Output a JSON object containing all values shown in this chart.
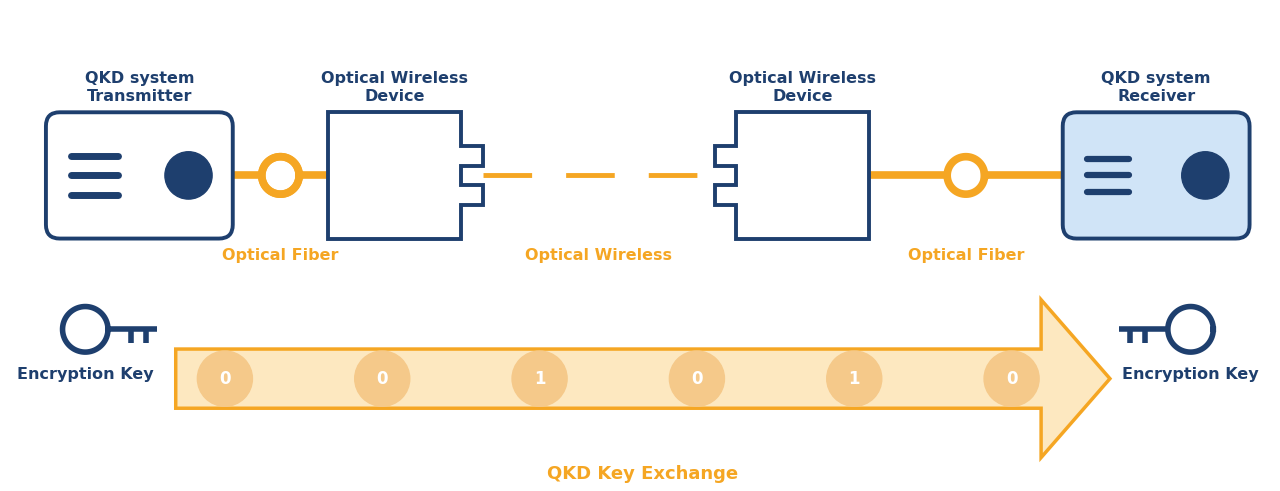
{
  "dark_blue": "#1e3f6e",
  "orange": "#f5a623",
  "pale_orange": "#fde8c0",
  "bit_circle": "#f5c98a",
  "white": "#ffffff",
  "rx_fill": "#d0e4f7",
  "labels": {
    "qkd_tx": "QKD system\nTransmitter",
    "qkd_rx": "QKD system\nReceiver",
    "owd1": "Optical Wireless\nDevice",
    "owd2": "Optical Wireless\nDevice",
    "fiber1": "Optical Fiber",
    "wireless": "Optical Wireless",
    "fiber2": "Optical Fiber",
    "key_exchange": "QKD Key Exchange",
    "enc_key_l": "Encryption Key",
    "enc_key_r": "Encryption Key"
  },
  "bits": [
    "0",
    "0",
    "1",
    "0",
    "1",
    "0"
  ],
  "figsize": [
    12.8,
    4.91
  ],
  "dpi": 100
}
